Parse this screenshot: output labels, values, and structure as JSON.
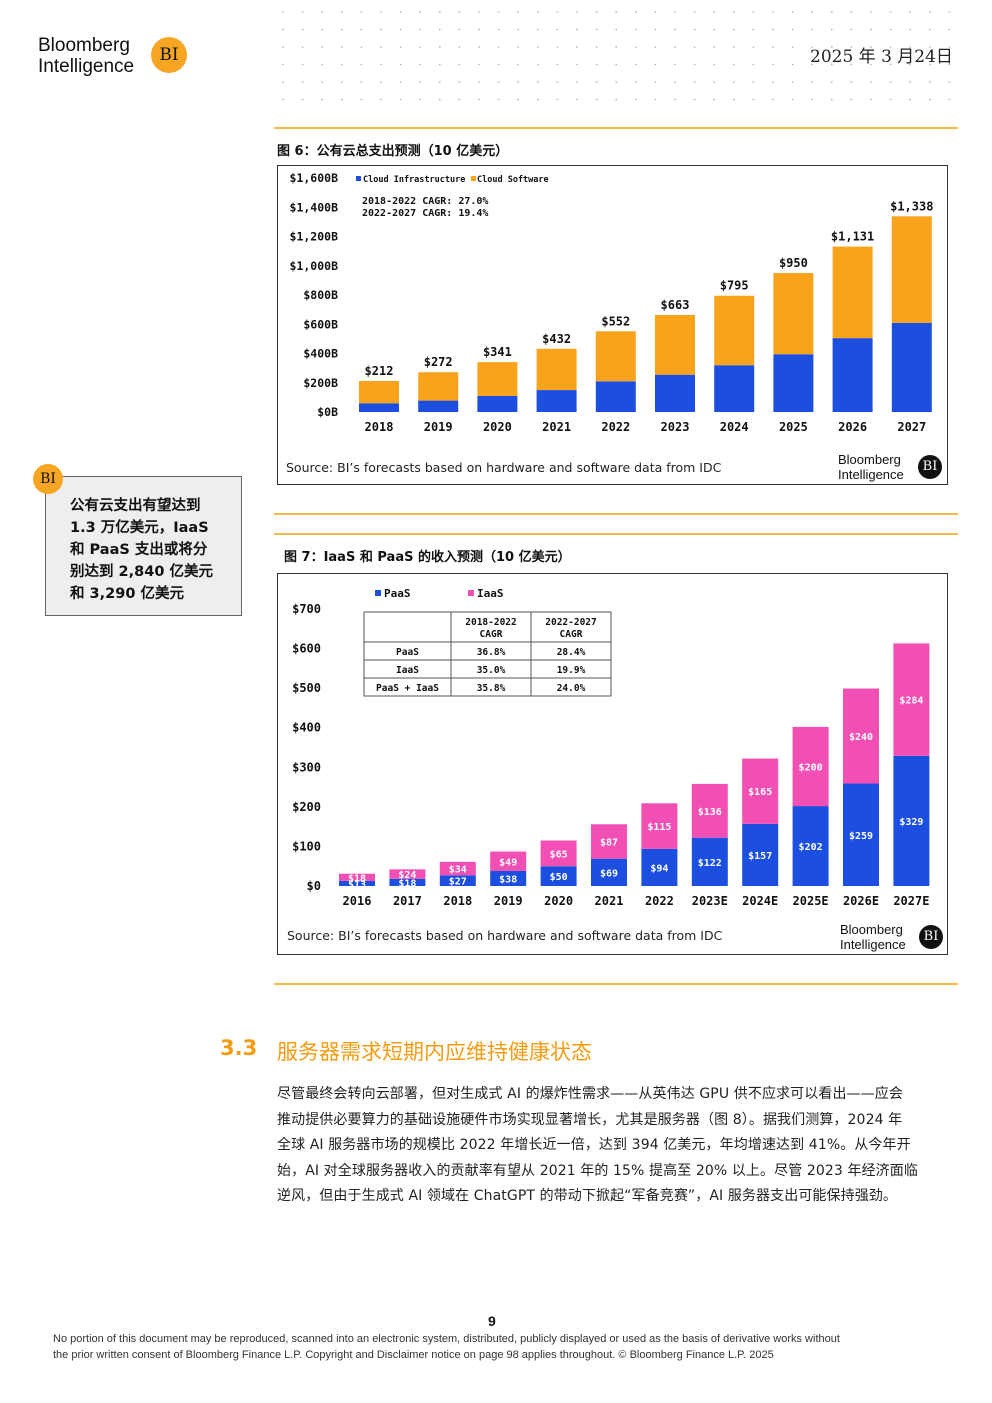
{
  "header": {
    "logo_line1": "Bloomberg",
    "logo_line2": "Intelligence",
    "logo_badge": "BI",
    "date": "2025 年 3 月24日"
  },
  "callout": {
    "badge": "BI",
    "lines": [
      "公有云支出有望达到",
      "1.3 万亿美元，IaaS",
      "和 PaaS 支出或将分",
      "别达到 2,840 亿美元",
      "和 3,290 亿美元"
    ]
  },
  "figure6": {
    "title": "图 6：公有云总支出预测（10 亿美元）",
    "source": "Source: BI’s forecasts based on hardware and software data from IDC",
    "brand_line1": "Bloomberg",
    "brand_line2": "Intelligence",
    "brand_badge": "BI"
  },
  "figure7": {
    "title": "图 7：IaaS 和 PaaS 的收入预测（10 亿美元）",
    "source": "Source: BI’s forecasts based on hardware and software data from IDC",
    "brand_line1": "Bloomberg",
    "brand_line2": "Intelligence",
    "brand_badge": "BI"
  },
  "section": {
    "number": "3.3",
    "title": "服务器需求短期内应维持健康状态",
    "paragraph_lines": [
      "尽管最终会转向云部署，但对生成式 AI 的爆炸性需求——从英伟达 GPU 供不应求可以看出——应会",
      "推动提供必要算力的基础设施硬件市场实现显著增长，尤其是服务器（图 8）。据我们测算，2024 年",
      "全球 AI 服务器市场的规模比 2022 年增长近一倍，达到 394 亿美元，年均增速达到 41%。从今年开",
      "始，AI 对全球服务器收入的贡献率有望从 2021 年的 15% 提高至 20% 以上。尽管 2023 年经济面临",
      "逆风，但由于生成式 AI 领域在 ChatGPT 的带动下掀起“军备竞赛”，AI 服务器支出可能保持强劲。"
    ]
  },
  "footer": {
    "page_number": "9",
    "line1": "No portion of this document may be reproduced, scanned into an electronic system, distributed, publicly displayed or used as the basis of derivative works without",
    "line2": "the prior written consent of Bloomberg Finance L.P. Copyright and Disclaimer notice on page 98 applies throughout. © Bloomberg Finance L.P. 2025"
  },
  "colors": {
    "accent_orange": "#f6a623",
    "blue_series": "#1c4fe0",
    "orange_series": "#f9a21b",
    "pink_series": "#f24fb4"
  },
  "chart_data": [
    {
      "type": "bar",
      "stacked": true,
      "categories": [
        "2018",
        "2019",
        "2020",
        "2021",
        "2022",
        "2023",
        "2024",
        "2025",
        "2026",
        "2027"
      ],
      "series": [
        {
          "name": "Cloud Infrastructure",
          "color": "#1c4fe0",
          "values": [
            60,
            78,
            110,
            150,
            210,
            255,
            320,
            395,
            505,
            610
          ]
        },
        {
          "name": "Cloud Software",
          "color": "#f9a21b",
          "values": [
            152,
            194,
            231,
            282,
            342,
            408,
            475,
            555,
            626,
            728
          ]
        }
      ],
      "totals": [
        212,
        272,
        341,
        432,
        552,
        663,
        795,
        950,
        1131,
        1338
      ],
      "total_labels": [
        "$212",
        "$272",
        "$341",
        "$432",
        "$552",
        "$663",
        "$795",
        "$950",
        "$1,131",
        "$1,338"
      ],
      "y_ticks": [
        0,
        200,
        400,
        600,
        800,
        1000,
        1200,
        1400,
        1600
      ],
      "y_tick_labels": [
        "$0B",
        "$200B",
        "$400B",
        "$600B",
        "$800B",
        "$1,000B",
        "$1,200B",
        "$1,400B",
        "$1,600B"
      ],
      "ylim": [
        0,
        1600
      ],
      "annotations": [
        "2018-2022 CAGR: 27.0%",
        "2022-2027 CAGR: 19.4%"
      ],
      "legend_placement": "top-left",
      "grid": false
    },
    {
      "type": "bar",
      "stacked": true,
      "categories": [
        "2016",
        "2017",
        "2018",
        "2019",
        "2020",
        "2021",
        "2022",
        "2023E",
        "2024E",
        "2025E",
        "2026E",
        "2027E"
      ],
      "series": [
        {
          "name": "PaaS",
          "color": "#1c4fe0",
          "values": [
            13,
            18,
            27,
            38,
            50,
            69,
            94,
            122,
            157,
            202,
            259,
            329
          ],
          "labels": [
            "$13",
            "$18",
            "$27",
            "$38",
            "$50",
            "$69",
            "$94",
            "$122",
            "$157",
            "$202",
            "$259",
            "$329"
          ]
        },
        {
          "name": "IaaS",
          "color": "#f24fb4",
          "values": [
            18,
            24,
            34,
            49,
            65,
            87,
            115,
            136,
            165,
            200,
            240,
            284
          ],
          "labels": [
            "$18",
            "$24",
            "$34",
            "$49",
            "$65",
            "$87",
            "$115",
            "$136",
            "$165",
            "$200",
            "$240",
            "$284"
          ]
        }
      ],
      "y_ticks": [
        0,
        100,
        200,
        300,
        400,
        500,
        600,
        700
      ],
      "y_tick_labels": [
        "$0",
        "$100",
        "$200",
        "$300",
        "$400",
        "$500",
        "$600",
        "$700"
      ],
      "ylim": [
        0,
        700
      ],
      "legend_placement": "top-left",
      "grid": false,
      "cagr_table": {
        "headers": [
          "",
          "2018-2022 CAGR",
          "2022-2027 CAGR"
        ],
        "header_top": [
          "",
          "2018-2022",
          "2022-2027"
        ],
        "header_bottom": [
          "",
          "CAGR",
          "CAGR"
        ],
        "rows": [
          [
            "PaaS",
            "36.8%",
            "28.4%"
          ],
          [
            "IaaS",
            "35.0%",
            "19.9%"
          ],
          [
            "PaaS + IaaS",
            "35.8%",
            "24.0%"
          ]
        ]
      }
    }
  ]
}
